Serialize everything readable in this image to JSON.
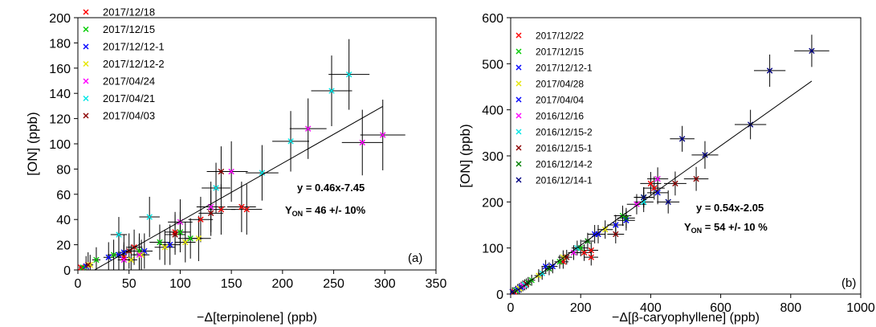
{
  "chart_data": [
    {
      "type": "scatter",
      "panel_label": "(a)",
      "xlabel": "−Δ[terpinolene] (ppb)",
      "ylabel": "[ON] (ppb)",
      "xlim": [
        0,
        350
      ],
      "ylim": [
        0,
        200
      ],
      "xticks": [
        "0",
        "50",
        "100",
        "150",
        "200",
        "250",
        "300",
        "350"
      ],
      "yticks": [
        "0",
        "20",
        "40",
        "60",
        "80",
        "100",
        "120",
        "140",
        "160",
        "180",
        "200"
      ],
      "annotation_eq": "y = 0.46x-7.45",
      "annotation_yield_prefix": "Y",
      "annotation_yield_sub": "ON",
      "annotation_yield_value": " = 46 +/- 10%",
      "fit": {
        "slope": 0.46,
        "intercept": -7.45,
        "x_start": 0,
        "x_end": 298
      },
      "legend_position": "top-left",
      "series": [
        {
          "name": "2017/12/18",
          "color": "#ff0000",
          "points": [
            [
              3,
              2,
              2,
              2
            ],
            [
              45,
              10,
              6,
              12
            ],
            [
              55,
              18,
              8,
              14
            ],
            [
              95,
              30,
              10,
              16
            ],
            [
              120,
              40,
              12,
              18
            ],
            [
              140,
              48,
              14,
              20
            ],
            [
              160,
              50,
              14,
              20
            ],
            [
              165,
              48,
              15,
              20
            ]
          ]
        },
        {
          "name": "2017/12/15",
          "color": "#00cc00",
          "points": [
            [
              5,
              2,
              2,
              2
            ],
            [
              18,
              8,
              4,
              10
            ],
            [
              35,
              12,
              6,
              12
            ],
            [
              60,
              15,
              8,
              14
            ],
            [
              80,
              22,
              10,
              14
            ],
            [
              100,
              30,
              10,
              16
            ],
            [
              110,
              25,
              12,
              16
            ]
          ]
        },
        {
          "name": "2017/12/12-1",
          "color": "#0000ff",
          "points": [
            [
              8,
              3,
              3,
              8
            ],
            [
              30,
              10,
              5,
              12
            ],
            [
              40,
              12,
              6,
              14
            ],
            [
              45,
              14,
              6,
              14
            ],
            [
              65,
              15,
              8,
              14
            ],
            [
              90,
              20,
              10,
              16
            ]
          ]
        },
        {
          "name": "2017/12/12-2",
          "color": "#e6e600",
          "points": [
            [
              12,
              4,
              3,
              8
            ],
            [
              52,
              8,
              6,
              12
            ],
            [
              62,
              12,
              8,
              12
            ],
            [
              85,
              18,
              10,
              14
            ],
            [
              105,
              22,
              10,
              16
            ],
            [
              118,
              25,
              12,
              18
            ]
          ]
        },
        {
          "name": "2017/04/24",
          "color": "#ff00ff",
          "points": [
            [
              45,
              8,
              6,
              12
            ],
            [
              60,
              12,
              8,
              14
            ],
            [
              100,
              38,
              12,
              18
            ],
            [
              130,
              50,
              14,
              20
            ],
            [
              150,
              78,
              16,
              24
            ],
            [
              225,
              112,
              18,
              24
            ],
            [
              278,
              101,
              20,
              26
            ],
            [
              298,
              107,
              22,
              28
            ]
          ]
        },
        {
          "name": "2017/04/21",
          "color": "#00e5e5",
          "points": [
            [
              40,
              28,
              8,
              14
            ],
            [
              70,
              42,
              10,
              16
            ],
            [
              135,
              65,
              14,
              20
            ],
            [
              180,
              77,
              16,
              22
            ],
            [
              208,
              102,
              18,
              24
            ],
            [
              248,
              142,
              20,
              28
            ],
            [
              265,
              155,
              20,
              28
            ]
          ]
        },
        {
          "name": "2017/04/03",
          "color": "#8b0000",
          "points": [
            [
              10,
              4,
              4,
              10
            ],
            [
              50,
              15,
              6,
              14
            ],
            [
              95,
              28,
              10,
              16
            ],
            [
              130,
              45,
              12,
              18
            ],
            [
              140,
              78,
              14,
              20
            ]
          ]
        }
      ]
    },
    {
      "type": "scatter",
      "panel_label": "(b)",
      "xlabel": "−Δ[β-caryophyllene] (ppb)",
      "ylabel": "[ON] (ppb)",
      "xlim": [
        0,
        1000
      ],
      "ylim": [
        0,
        600
      ],
      "xticks": [
        "0",
        "200",
        "400",
        "600",
        "800",
        "1000"
      ],
      "yticks": [
        "0",
        "100",
        "200",
        "300",
        "400",
        "500",
        "600"
      ],
      "annotation_eq": "y = 0.54x-2.05",
      "annotation_yield_prefix": "Y",
      "annotation_yield_sub": "ON",
      "annotation_yield_value": " = 54 +/- 10 %",
      "fit": {
        "slope": 0.54,
        "intercept": -2.05,
        "x_start": 0,
        "x_end": 860
      },
      "legend_position": "top-left",
      "series": [
        {
          "name": "2017/12/22",
          "color": "#ff0000",
          "points": [
            [
              10,
              5,
              6,
              10
            ],
            [
              150,
              70,
              15,
              15
            ],
            [
              210,
              90,
              20,
              18
            ],
            [
              230,
              95,
              20,
              18
            ],
            [
              230,
              80,
              20,
              18
            ],
            [
              400,
              240,
              30,
              25
            ],
            [
              410,
              230,
              30,
              25
            ]
          ]
        },
        {
          "name": "2017/12/15",
          "color": "#00cc00",
          "points": [
            [
              15,
              8,
              6,
              10
            ],
            [
              60,
              30,
              10,
              12
            ],
            [
              140,
              70,
              15,
              15
            ],
            [
              200,
              100,
              20,
              18
            ],
            [
              320,
              170,
              25,
              22
            ],
            [
              380,
              210,
              28,
              22
            ]
          ]
        },
        {
          "name": "2017/12/12-1",
          "color": "#0000ff",
          "points": [
            [
              20,
              10,
              8,
              12
            ],
            [
              100,
              60,
              12,
              14
            ],
            [
              250,
              130,
              20,
              20
            ],
            [
              330,
              160,
              25,
              22
            ],
            [
              420,
              220,
              30,
              25
            ]
          ]
        },
        {
          "name": "2017/04/28",
          "color": "#e6e600",
          "points": [
            [
              25,
              12,
              8,
              12
            ],
            [
              80,
              40,
              12,
              14
            ],
            [
              150,
              80,
              15,
              15
            ],
            [
              270,
              140,
              22,
              20
            ]
          ]
        },
        {
          "name": "2017/04/04",
          "color": "#0000ff",
          "points": [
            [
              30,
              15,
              8,
              12
            ],
            [
              120,
              60,
              14,
              15
            ],
            [
              240,
              130,
              20,
              20
            ],
            [
              300,
              150,
              24,
              22
            ]
          ]
        },
        {
          "name": "2016/12/16",
          "color": "#ff00ff",
          "points": [
            [
              35,
              18,
              8,
              12
            ],
            [
              180,
              90,
              16,
              16
            ],
            [
              360,
              195,
              28,
              22
            ],
            [
              420,
              250,
              30,
              25
            ]
          ]
        },
        {
          "name": "2016/12/15-2",
          "color": "#00e5e5",
          "points": [
            [
              40,
              20,
              8,
              12
            ],
            [
              90,
              45,
              12,
              14
            ],
            [
              190,
              100,
              16,
              16
            ],
            [
              380,
              200,
              28,
              22
            ]
          ]
        },
        {
          "name": "2016/12/15-1",
          "color": "#8b0000",
          "points": [
            [
              45,
              22,
              8,
              12
            ],
            [
              160,
              80,
              16,
              16
            ],
            [
              300,
              130,
              24,
              20
            ],
            [
              470,
              240,
              32,
              26
            ],
            [
              530,
              250,
              35,
              26
            ]
          ]
        },
        {
          "name": "2016/12/14-2",
          "color": "#008000",
          "points": [
            [
              50,
              25,
              8,
              12
            ],
            [
              110,
              55,
              12,
              14
            ],
            [
              220,
              115,
              18,
              18
            ],
            [
              330,
              165,
              25,
              22
            ]
          ]
        },
        {
          "name": "2016/12/14-1",
          "color": "#000080",
          "points": [
            [
              5,
              5,
              6,
              10
            ],
            [
              380,
              210,
              28,
              22
            ],
            [
              450,
              200,
              32,
              25
            ],
            [
              490,
              337,
              35,
              28
            ],
            [
              555,
              302,
              38,
              30
            ],
            [
              685,
              368,
              45,
              32
            ],
            [
              740,
              485,
              45,
              35
            ],
            [
              860,
              528,
              50,
              35
            ]
          ]
        }
      ]
    }
  ]
}
